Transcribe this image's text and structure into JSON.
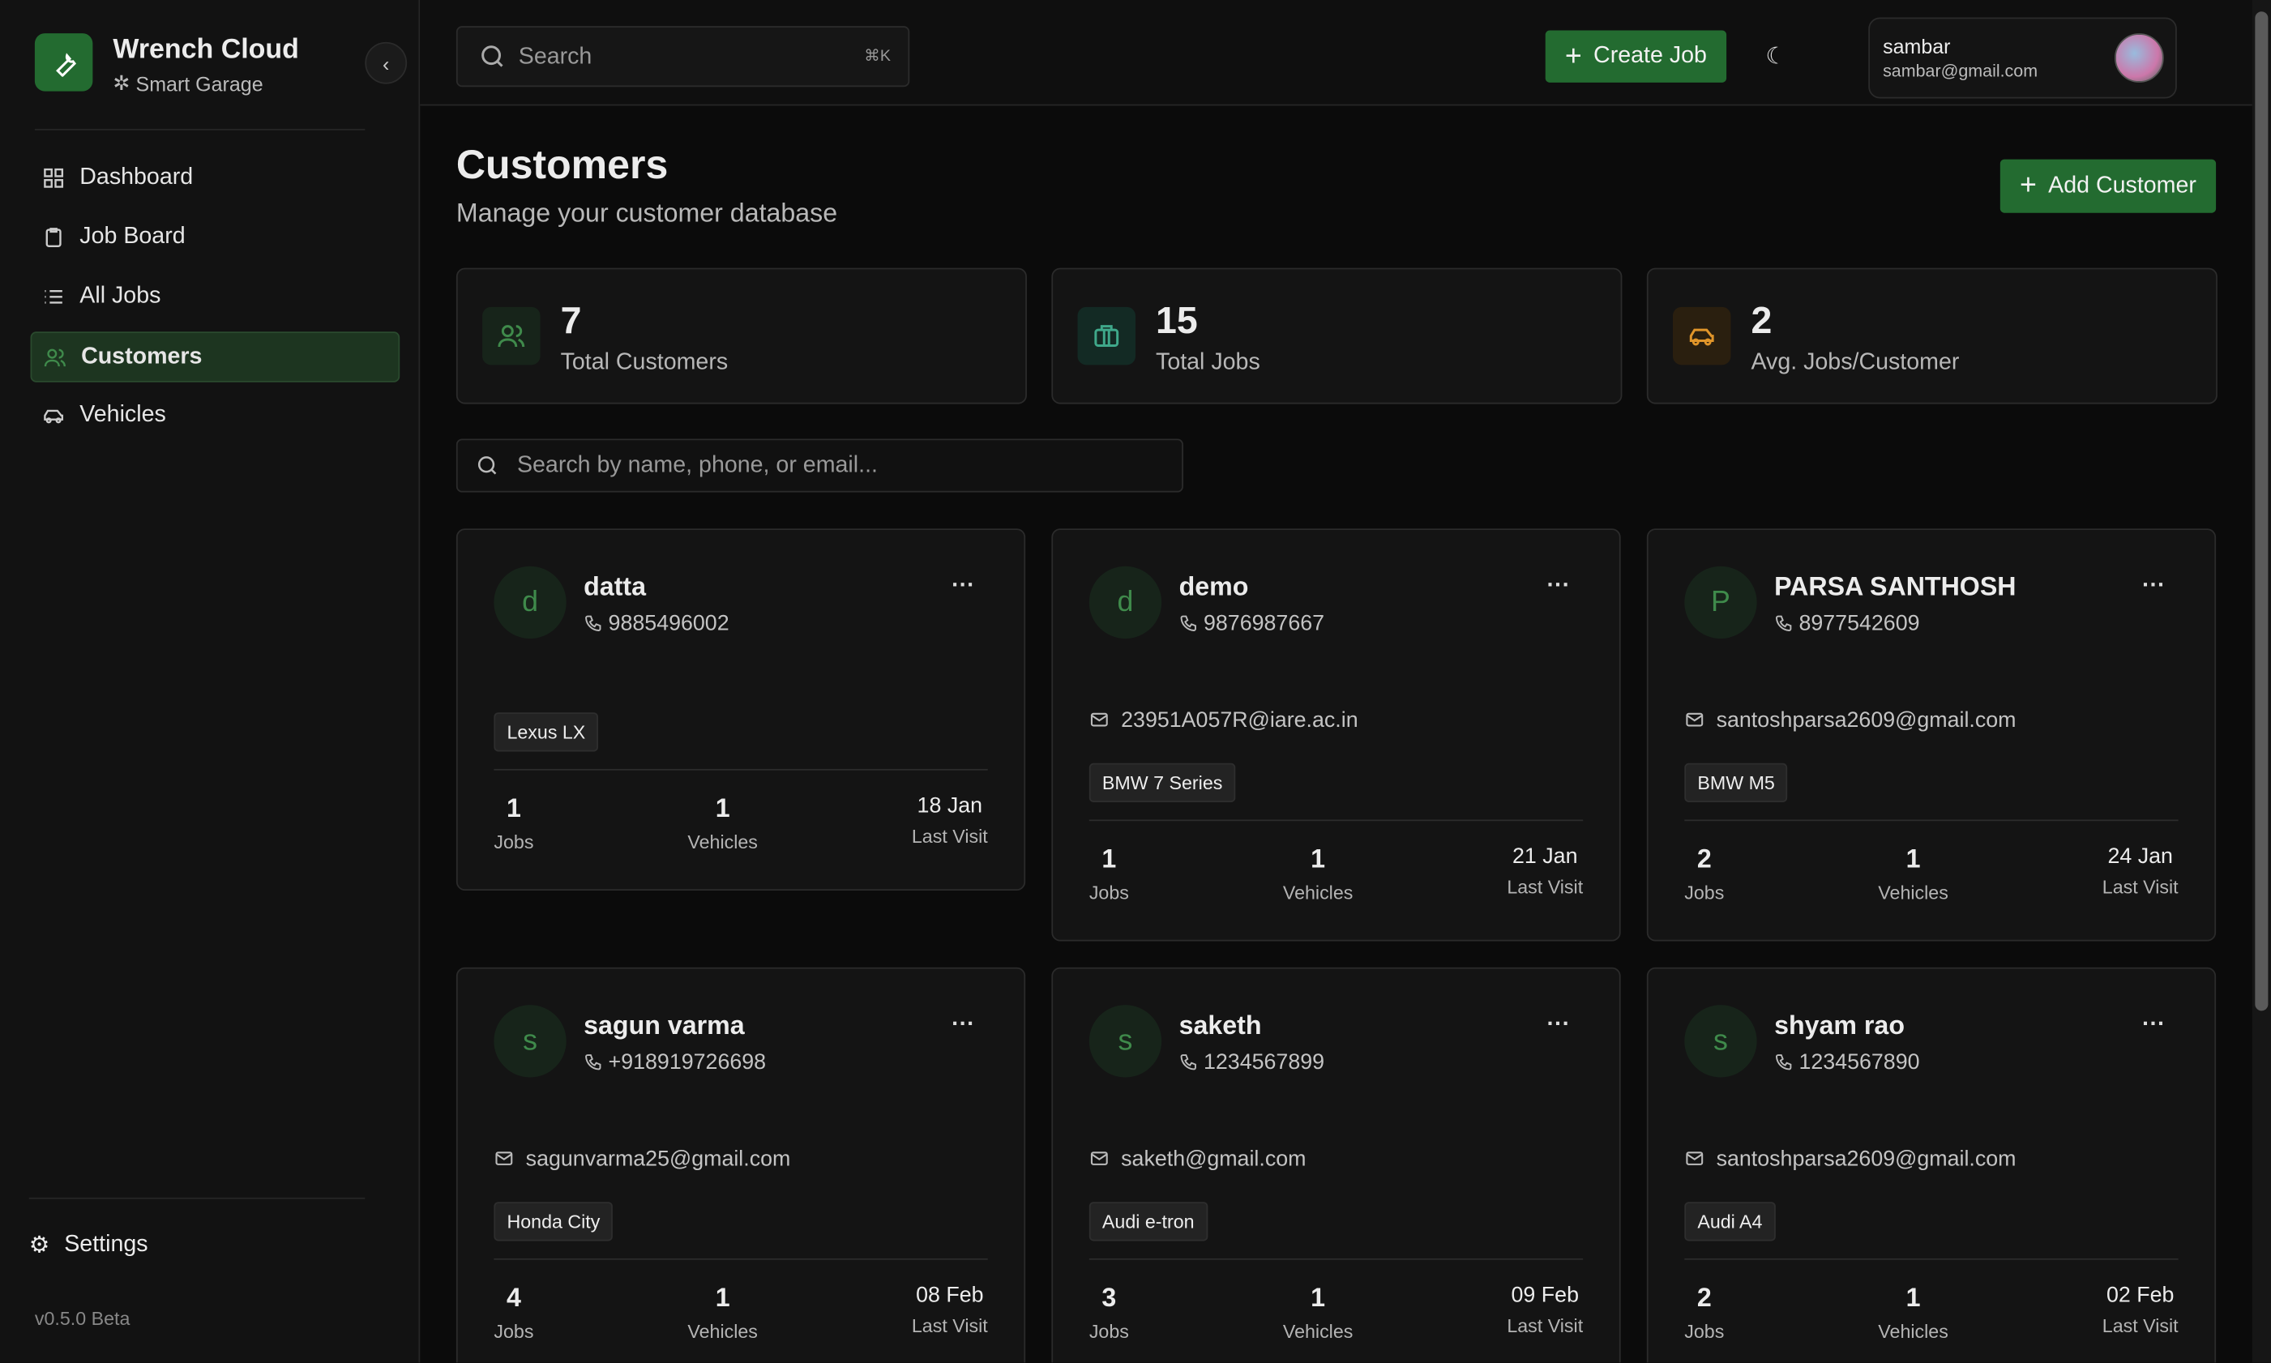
{
  "sidebar": {
    "brand": "Wrench Cloud",
    "tagline": "Smart Garage",
    "nav": [
      "Dashboard",
      "Job Board",
      "All Jobs",
      "Customers",
      "Vehicles"
    ],
    "settings": "Settings",
    "version": "v0.5.0 Beta"
  },
  "topbar": {
    "search": "Search",
    "shortcut": "⌘K",
    "create_job": "Create Job",
    "user_name": "sambar",
    "user_email": "sambar@gmail.com"
  },
  "header": {
    "title": "Customers",
    "subtitle": "Manage your customer database",
    "add_button": "Add Customer"
  },
  "stats": [
    {
      "value": 7,
      "label": "Total Customers"
    },
    {
      "value": 15,
      "label": "Total Jobs"
    },
    {
      "value": 2,
      "label": "Avg. Jobs/Customer"
    }
  ],
  "customer_search": "Search by name, phone, or email...",
  "card_labels": {
    "jobs": "Jobs",
    "vehicles": "Vehicles",
    "last_visit": "Last Visit",
    "menu": "···"
  },
  "customers": [
    {
      "initial": "d",
      "name": "datta",
      "phone": "9885496002",
      "vehicle": "Lexus LX",
      "jobs": 1,
      "vehicles": 1,
      "last_visit": "18 Jan"
    },
    {
      "initial": "d",
      "name": "demo",
      "phone": "9876987667",
      "email": "23951A057R@iare.ac.in",
      "vehicle": "BMW 7 Series",
      "jobs": 1,
      "vehicles": 1,
      "last_visit": "21 Jan"
    },
    {
      "initial": "P",
      "name": "PARSA SANTHOSH",
      "phone": "8977542609",
      "email": "santoshparsa2609@gmail.com",
      "vehicle": "BMW M5",
      "jobs": 2,
      "vehicles": 1,
      "last_visit": "24 Jan"
    },
    {
      "initial": "s",
      "name": "sagun varma",
      "phone": "+918919726698",
      "email": "sagunvarma25@gmail.com",
      "vehicle": "Honda City",
      "jobs": 4,
      "vehicles": 1,
      "last_visit": "08 Feb"
    },
    {
      "initial": "s",
      "name": "saketh",
      "phone": "1234567899",
      "email": "saketh@gmail.com",
      "vehicle": "Audi e-tron",
      "jobs": 3,
      "vehicles": 1,
      "last_visit": "09 Feb"
    },
    {
      "initial": "s",
      "name": "shyam rao",
      "phone": "1234567890",
      "email": "santoshparsa2609@gmail.com",
      "vehicle": "Audi A4",
      "jobs": 2,
      "vehicles": 1,
      "last_visit": "02 Feb"
    }
  ]
}
